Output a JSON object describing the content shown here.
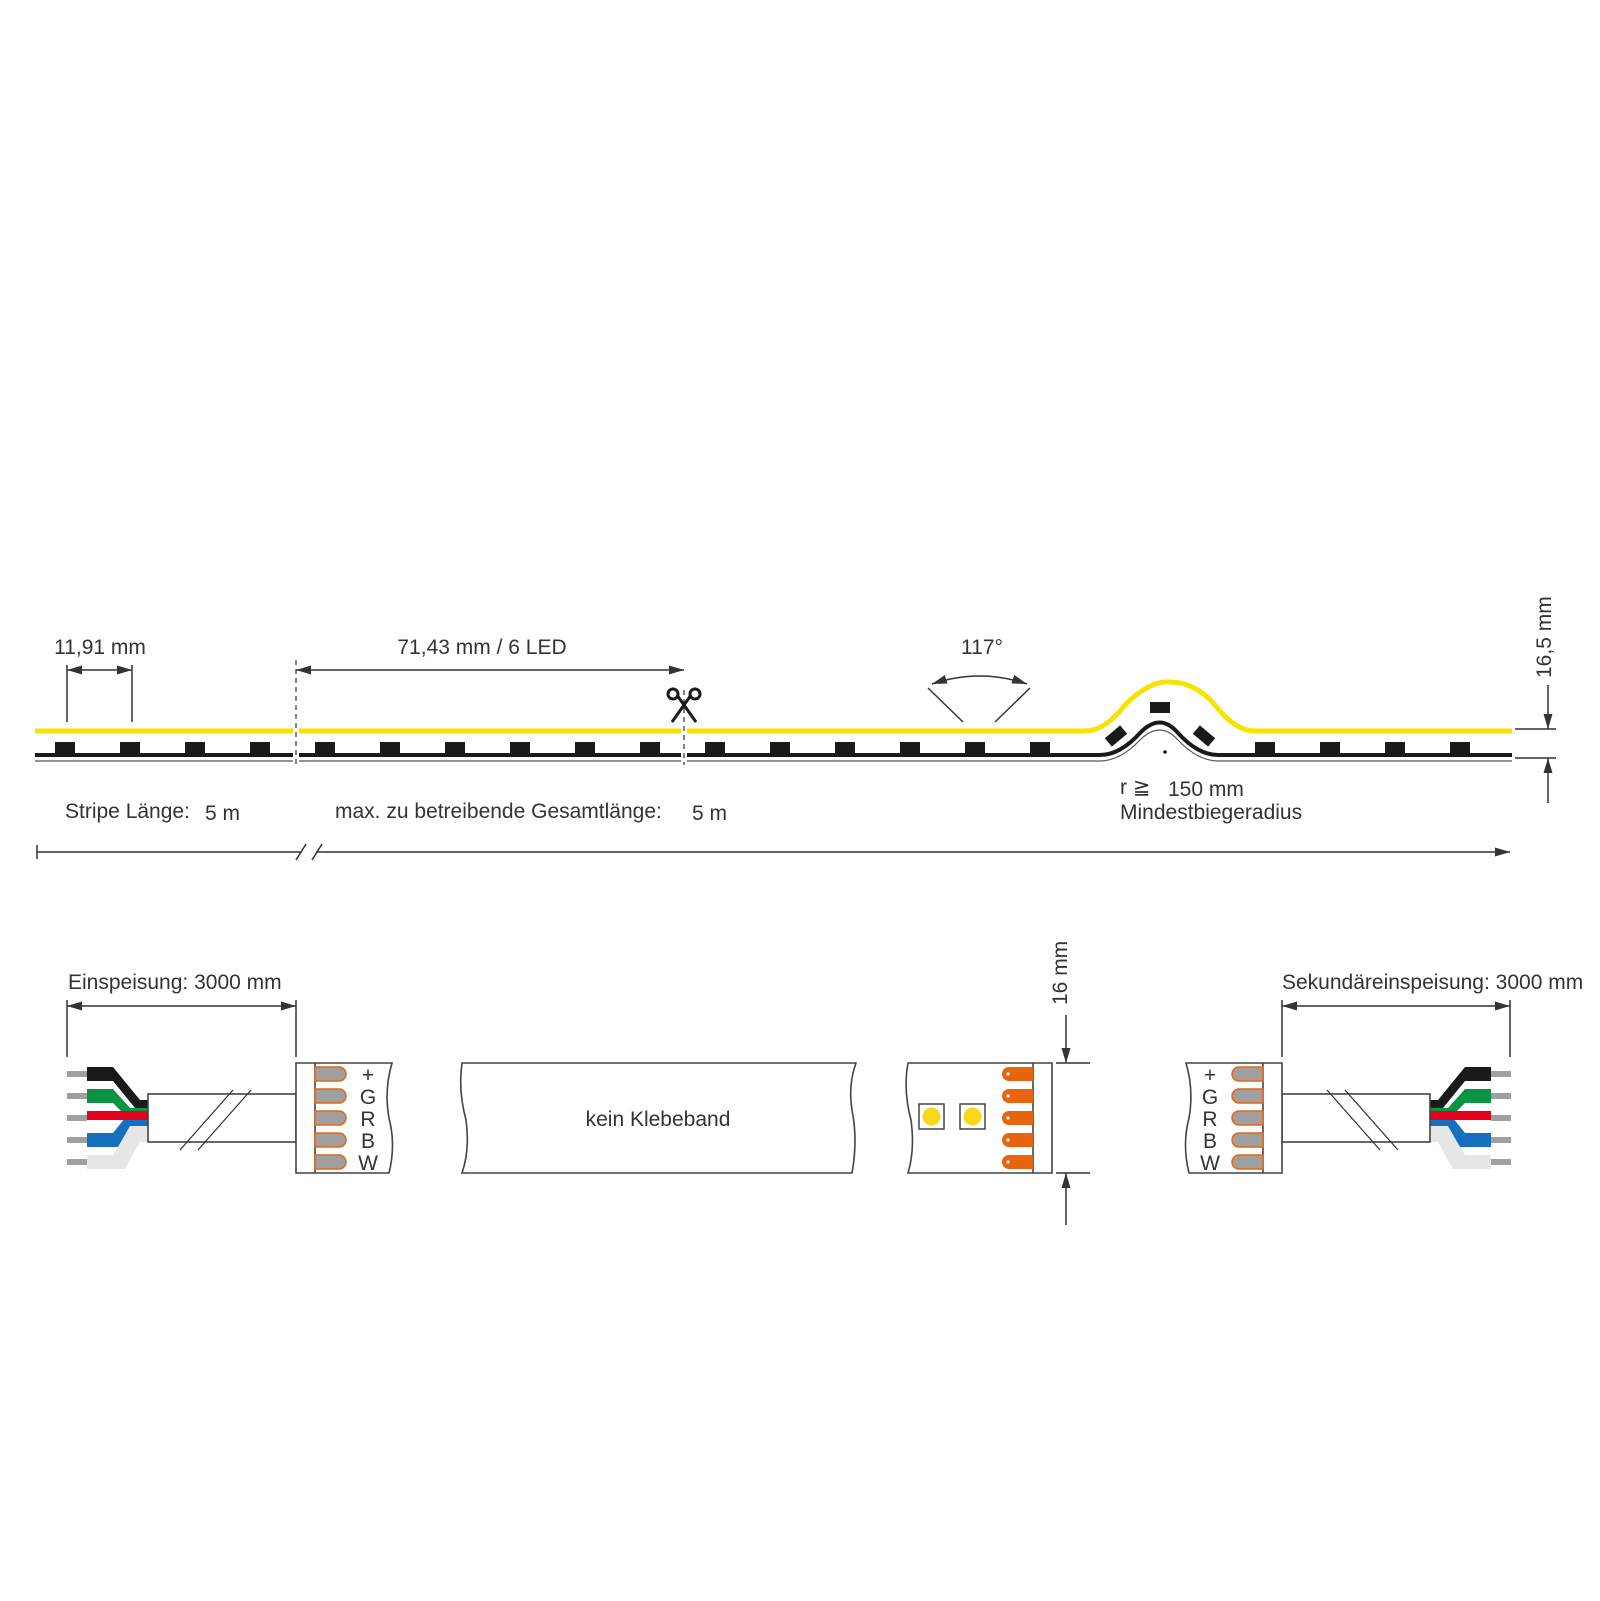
{
  "labels": {
    "led_pitch": "11,91 mm",
    "cut_interval": "71,43 mm / 6 LED",
    "beam_angle": "117°",
    "strip_height": "16,5 mm",
    "stripe_length_label": "Stripe Länge:",
    "stripe_length_value": "5 m",
    "max_length_label": "max. zu betreibende Gesamtlänge:",
    "max_length_value": "5 m",
    "radius_symbol": "r ≧",
    "radius_value": "150 mm",
    "radius_caption": "Mindestbiegeradius",
    "feed_label": "Einspeisung: 3000 mm",
    "secondary_feed_label": "Sekundäreinspeisung: 3000 mm",
    "no_adhesive": "kein Klebeband",
    "strip_width": "16 mm",
    "pins": [
      "+",
      "G",
      "R",
      "B",
      "W"
    ]
  },
  "colors": {
    "led_line": "#f5e400",
    "pad_orange": "#e8650f",
    "pad_gray": "#a0a0a0",
    "led_yellow": "#f9d71c",
    "wires": [
      "#1a1a1a",
      "#0a9444",
      "#e2001a",
      "#1570c0",
      "#e6e6e6"
    ]
  },
  "icons": [
    "scissors-icon"
  ]
}
